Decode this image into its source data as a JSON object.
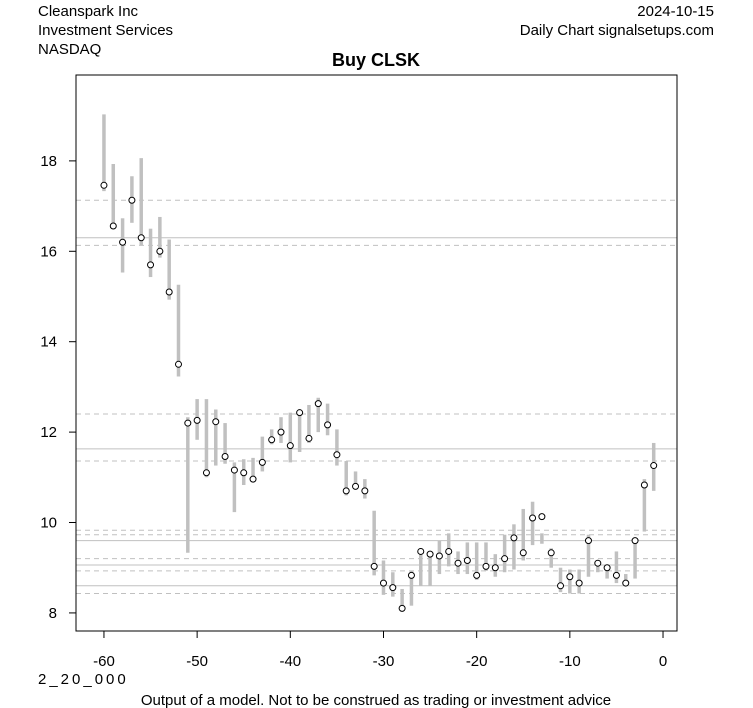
{
  "header": {
    "company": "Cleanspark Inc",
    "sector": "Investment Services",
    "exchange": "NASDAQ",
    "date": "2024-10-15",
    "chart_source": "Daily Chart signalsetups.com"
  },
  "footer": {
    "code": "2_20_000",
    "disclaimer": "Output of a model. Not to be construed as trading or investment advice"
  },
  "colors": {
    "range_bar": "#c0c0c0",
    "solid_line": "#c0c0c0",
    "dashed_line": "#c0c0c0",
    "point_fill": "#ffffff",
    "point_stroke": "#000000"
  },
  "chart_data": {
    "type": "scatter",
    "title": "Buy CLSK",
    "xlabel": "",
    "ylabel": "",
    "xlim": [
      -63,
      1.5
    ],
    "ylim": [
      7.6,
      19.9
    ],
    "x_ticks": [
      -60,
      -50,
      -40,
      -30,
      -20,
      -10,
      0
    ],
    "y_ticks": [
      8,
      10,
      12,
      14,
      16,
      18
    ],
    "grid": false,
    "horizontal_lines": {
      "solid": [
        16.3,
        11.63,
        9.6,
        9.06,
        8.6
      ],
      "dashed": [
        17.13,
        16.13,
        12.4,
        11.36,
        9.83,
        9.73,
        9.2,
        8.93,
        8.43
      ]
    },
    "series": [
      {
        "type": "range",
        "x": [
          -60,
          -59,
          -58,
          -57,
          -56,
          -55,
          -54,
          -53,
          -52,
          -51,
          -50,
          -49,
          -48,
          -47,
          -46,
          -45,
          -44,
          -43,
          -42,
          -41,
          -40,
          -39,
          -38,
          -37,
          -36,
          -35,
          -34,
          -33,
          -32,
          -31,
          -30,
          -29,
          -28,
          -27,
          -26,
          -25,
          -24,
          -23,
          -22,
          -21,
          -20,
          -19,
          -18,
          -17,
          -16,
          -15,
          -14,
          -13,
          -12,
          -11,
          -10,
          -9,
          -8,
          -7,
          -6,
          -5,
          -4,
          -3,
          -2,
          -1
        ],
        "low": [
          17.33,
          16.5,
          15.53,
          16.63,
          16.13,
          15.43,
          15.86,
          14.93,
          13.23,
          9.33,
          11.83,
          11.0,
          11.26,
          11.3,
          10.23,
          10.83,
          10.9,
          11.13,
          11.73,
          11.76,
          11.33,
          11.56,
          11.76,
          12.0,
          11.93,
          11.26,
          10.6,
          10.76,
          10.53,
          8.83,
          8.4,
          8.36,
          8.03,
          8.16,
          8.6,
          8.6,
          8.86,
          9.03,
          8.86,
          8.86,
          8.73,
          8.93,
          8.8,
          8.9,
          8.96,
          9.16,
          9.5,
          9.53,
          9.0,
          8.46,
          8.43,
          8.43,
          8.8,
          8.9,
          8.76,
          8.66,
          8.63,
          8.76,
          9.8,
          10.7
        ],
        "high": [
          19.03,
          17.93,
          16.73,
          17.66,
          18.06,
          16.5,
          16.76,
          16.26,
          15.26,
          12.33,
          12.73,
          12.73,
          12.5,
          12.2,
          11.33,
          11.4,
          11.43,
          11.9,
          12.06,
          12.33,
          12.43,
          12.46,
          12.6,
          12.76,
          12.63,
          12.06,
          11.36,
          11.13,
          10.96,
          10.26,
          9.16,
          8.9,
          8.53,
          8.93,
          9.43,
          9.36,
          9.6,
          9.76,
          9.36,
          9.56,
          9.56,
          9.56,
          9.3,
          9.73,
          9.96,
          10.3,
          10.46,
          9.76,
          9.43,
          9.0,
          8.96,
          8.96,
          9.73,
          9.16,
          9.06,
          9.36,
          8.86,
          9.63,
          10.96,
          11.76
        ]
      },
      {
        "type": "points",
        "x": [
          -60,
          -59,
          -58,
          -57,
          -56,
          -55,
          -54,
          -53,
          -52,
          -51,
          -50,
          -49,
          -48,
          -47,
          -46,
          -45,
          -44,
          -43,
          -42,
          -41,
          -40,
          -39,
          -38,
          -37,
          -36,
          -35,
          -34,
          -33,
          -32,
          -31,
          -30,
          -29,
          -28,
          -27,
          -26,
          -25,
          -24,
          -23,
          -22,
          -21,
          -20,
          -19,
          -18,
          -17,
          -16,
          -15,
          -14,
          -13,
          -12,
          -11,
          -10,
          -9,
          -8,
          -7,
          -6,
          -5,
          -4,
          -3,
          -2,
          -1
        ],
        "values": [
          17.46,
          16.56,
          16.2,
          17.13,
          16.3,
          15.7,
          16.0,
          15.1,
          13.5,
          12.2,
          12.26,
          11.1,
          12.23,
          11.46,
          11.16,
          11.1,
          10.96,
          11.33,
          11.83,
          12.0,
          11.7,
          12.43,
          11.86,
          12.63,
          12.16,
          11.5,
          10.7,
          10.8,
          10.7,
          9.03,
          8.66,
          8.56,
          8.1,
          8.83,
          9.36,
          9.3,
          9.26,
          9.36,
          9.1,
          9.16,
          8.83,
          9.03,
          9.0,
          9.2,
          9.66,
          9.33,
          10.1,
          10.13,
          9.33,
          8.6,
          8.8,
          8.66,
          9.6,
          9.1,
          9.0,
          8.83,
          8.66,
          9.6,
          10.83,
          11.26
        ]
      }
    ]
  }
}
